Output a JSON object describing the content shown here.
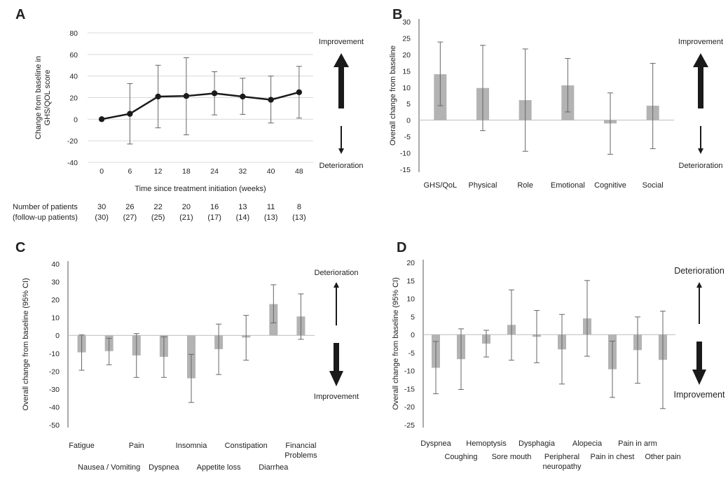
{
  "chart_data": [
    {
      "panel": "A",
      "type": "line",
      "xlabel": "Time since treatment initiation (weeks)",
      "ylabel": "Change from baseline in GHS/QOL score",
      "ylabel_lines": [
        "Change from baseline in",
        "GHS/QOL score"
      ],
      "ylim": [
        -40,
        80
      ],
      "yticks": [
        80,
        60,
        40,
        20,
        0,
        -20,
        -40
      ],
      "ytick_labels": [
        "80",
        "60",
        "40",
        "20",
        "0",
        "-20",
        "-40"
      ],
      "grid": true,
      "categories": [
        "0",
        "6",
        "12",
        "18",
        "24",
        "32",
        "40",
        "48"
      ],
      "values": [
        0,
        5,
        21,
        21.5,
        24,
        21,
        18,
        25
      ],
      "err_low": [
        0,
        -23,
        -8,
        -14.5,
        4,
        4.5,
        -3.5,
        1
      ],
      "err_high": [
        0,
        33,
        50,
        57,
        44,
        38,
        40,
        49
      ],
      "table": {
        "label1": "Number of patients",
        "label2": "(follow-up patients)",
        "patients": [
          "30",
          "26",
          "22",
          "20",
          "16",
          "13",
          "11",
          "8"
        ],
        "followup": [
          "(30)",
          "(27)",
          "(25)",
          "(21)",
          "(17)",
          "(14)",
          "(13)",
          "(13)"
        ]
      },
      "annotations": {
        "top": "Improvement",
        "bottom": "Deterioration"
      }
    },
    {
      "panel": "B",
      "type": "bar",
      "ylabel": "Overall change from baseline",
      "ylim": [
        -15,
        30
      ],
      "yticks": [
        30,
        25,
        20,
        15,
        10,
        5,
        0,
        -5,
        -10,
        -15
      ],
      "ytick_labels": [
        "30",
        "25",
        "20",
        "15",
        "10",
        "5",
        "0",
        "-5",
        "-10",
        "-15"
      ],
      "categories": [
        "GHS/QoL",
        "Physical",
        "Role",
        "Emotional",
        "Cognitive",
        "Social"
      ],
      "values": [
        14,
        9.8,
        6.1,
        10.6,
        -1,
        4.4
      ],
      "err_low": [
        4.4,
        -3.2,
        -9.5,
        2.5,
        -10.4,
        -8.7
      ],
      "err_high": [
        23.8,
        22.8,
        21.7,
        18.8,
        8.3,
        17.3
      ],
      "annotations": {
        "top": "Improvement",
        "bottom": "Deterioration"
      }
    },
    {
      "panel": "C",
      "type": "bar",
      "ylabel": "Overall change from baseline (95% CI)",
      "ylim": [
        -50,
        40
      ],
      "yticks": [
        40,
        30,
        20,
        10,
        0,
        -10,
        -20,
        -30,
        -40,
        -50
      ],
      "ytick_labels": [
        "40",
        "30",
        "20",
        "10",
        "0",
        "-10",
        "-20",
        "-30",
        "-40",
        "-50"
      ],
      "categories": [
        "Fatigue",
        "Nausea / Vomiting",
        "Pain",
        "Dyspnea",
        "Insomnia",
        "Appetite loss",
        "Constipation",
        "Diarrhea",
        "Financial Problems"
      ],
      "category_lines": [
        [
          "Fatigue"
        ],
        [
          "Nausea / Vomiting"
        ],
        [
          "Pain"
        ],
        [
          "Dyspnea"
        ],
        [
          "Insomnia"
        ],
        [
          "Appetite loss"
        ],
        [
          "Constipation"
        ],
        [
          "Diarrhea"
        ],
        [
          "Financial",
          "Problems"
        ]
      ],
      "label_row": [
        0,
        1,
        0,
        1,
        0,
        1,
        0,
        1,
        0
      ],
      "values": [
        -9.5,
        -8.8,
        -11.2,
        -12,
        -24,
        -7.7,
        -1.2,
        17.5,
        10.6
      ],
      "err_low": [
        -19.5,
        -16.4,
        -23.5,
        -23.5,
        -37.5,
        -21.9,
        -13.9,
        7,
        -2.2
      ],
      "err_high": [
        0.3,
        -1.6,
        1,
        -0.8,
        -10.6,
        6.3,
        11.2,
        28.3,
        23.2
      ],
      "annotations": {
        "top": "Deterioration",
        "bottom": "Improvement"
      }
    },
    {
      "panel": "D",
      "type": "bar",
      "ylabel": "Overall change from baseline (95% CI)",
      "ylim": [
        -25,
        20
      ],
      "yticks": [
        20,
        15,
        10,
        5,
        0,
        -5,
        -10,
        -15,
        -20,
        -25
      ],
      "ytick_labels": [
        "20",
        "15",
        "10",
        "5",
        "0",
        "-5",
        "-10",
        "-15",
        "-20",
        "-25"
      ],
      "categories": [
        "Dyspnea",
        "Coughing",
        "Hemoptysis",
        "Sore mouth",
        "Dysphagia",
        "Peripheral neuropathy",
        "Alopecia",
        "Pain in chest",
        "Pain in arm",
        "Other pain"
      ],
      "category_lines": [
        [
          "Dyspnea"
        ],
        [
          "Coughing"
        ],
        [
          "Hemoptysis"
        ],
        [
          "Sore mouth"
        ],
        [
          "Dysphagia"
        ],
        [
          "Peripheral",
          "neuropathy"
        ],
        [
          "Alopecia"
        ],
        [
          "Pain in chest"
        ],
        [
          "Pain in arm"
        ],
        [
          "Other pain"
        ]
      ],
      "label_row": [
        0,
        1,
        0,
        1,
        0,
        1,
        0,
        1,
        0,
        1
      ],
      "values": [
        -9.2,
        -6.8,
        -2.5,
        2.7,
        -0.6,
        -4.1,
        4.5,
        -9.6,
        -4.3,
        -7
      ],
      "err_low": [
        -16.4,
        -15.2,
        -6.2,
        -7.1,
        -7.8,
        -13.7,
        -6,
        -17.4,
        -13.5,
        -20.5
      ],
      "err_high": [
        -1.9,
        1.6,
        1.2,
        12.4,
        6.7,
        5.6,
        15,
        -1.8,
        4.9,
        6.5
      ],
      "annotations": {
        "top": "Deterioration",
        "bottom": "Improvement"
      }
    }
  ]
}
